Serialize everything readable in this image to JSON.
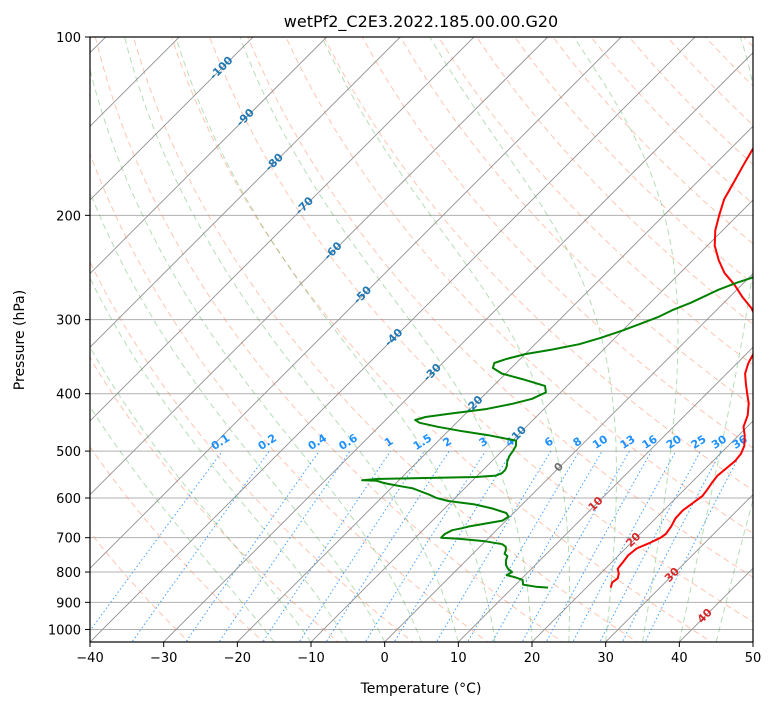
{
  "chart_data": {
    "type": "line",
    "subtype": "skew-t log-p diagram",
    "title": "wetPf2_C2E3.2022.185.00.00.G20",
    "xlabel": "Temperature (°C)",
    "ylabel": "Pressure (hPa)",
    "xlim": [
      -40,
      50
    ],
    "ylim": [
      1050,
      100
    ],
    "y_scale": "log",
    "grid": true,
    "x_ticks": [
      -40,
      -30,
      -20,
      -10,
      0,
      10,
      20,
      30,
      40,
      50
    ],
    "y_ticks": [
      100,
      200,
      300,
      400,
      500,
      600,
      700,
      800,
      900,
      1000
    ],
    "colors": {
      "temperature": "#ff0000",
      "dewpoint": "#008000",
      "dry_adiabats": "#ff7f50",
      "moist_adiabats": "#2ca02c",
      "mixing_ratio": "#1e90ff",
      "isotherms": "#808080"
    },
    "isotherm_labels": [
      {
        "t": -100,
        "p": 113,
        "text": "-100"
      },
      {
        "t": -90,
        "p": 137,
        "text": "-90"
      },
      {
        "t": -80,
        "p": 163,
        "text": "-80"
      },
      {
        "t": -70,
        "p": 193,
        "text": "-70"
      },
      {
        "t": -60,
        "p": 230,
        "text": "-60"
      },
      {
        "t": -50,
        "p": 273,
        "text": "-50"
      },
      {
        "t": -40,
        "p": 322,
        "text": "-40"
      },
      {
        "t": -30,
        "p": 369,
        "text": "-30"
      },
      {
        "t": -20,
        "p": 418,
        "text": "-20"
      },
      {
        "t": -10,
        "p": 470,
        "text": "-10"
      },
      {
        "t": 0,
        "p": 533,
        "text": "0"
      },
      {
        "t": 10,
        "p": 615,
        "text": "10"
      },
      {
        "t": 20,
        "p": 707,
        "text": "20"
      },
      {
        "t": 30,
        "p": 810,
        "text": "30"
      },
      {
        "t": 40,
        "p": 950,
        "text": "40"
      }
    ],
    "mixing_ratio_labels": [
      "0.1",
      "0.2",
      "0.4",
      "0.6",
      "1",
      "1.5",
      "2",
      "3",
      "4",
      "6",
      "8",
      "10",
      "13",
      "16",
      "20",
      "25",
      "30",
      "36"
    ],
    "series": [
      {
        "type": "temperature",
        "points": [
          [
            23.3,
            850
          ],
          [
            22.8,
            833
          ],
          [
            23.0,
            820
          ],
          [
            22.5,
            805
          ],
          [
            21.7,
            790
          ],
          [
            21.5,
            770
          ],
          [
            21.3,
            750
          ],
          [
            21.5,
            730
          ],
          [
            22.5,
            715
          ],
          [
            23.3,
            700
          ],
          [
            23.5,
            690
          ],
          [
            23.2,
            670
          ],
          [
            22.7,
            650
          ],
          [
            22.6,
            630
          ],
          [
            23.0,
            610
          ],
          [
            23.3,
            595
          ],
          [
            23.1,
            580
          ],
          [
            22.8,
            565
          ],
          [
            22.6,
            550
          ],
          [
            22.8,
            535
          ],
          [
            23.0,
            520
          ],
          [
            22.8,
            505
          ],
          [
            22.2,
            490
          ],
          [
            20.8,
            470
          ],
          [
            19.5,
            455
          ],
          [
            18.5,
            435
          ],
          [
            17.0,
            415
          ],
          [
            15.5,
            400
          ],
          [
            14.0,
            385
          ],
          [
            12.5,
            370
          ],
          [
            11.5,
            355
          ],
          [
            10.8,
            340
          ],
          [
            10.0,
            325
          ],
          [
            9.0,
            313
          ],
          [
            6.8,
            300
          ],
          [
            4.5,
            287
          ],
          [
            1.8,
            275
          ],
          [
            -1.0,
            262
          ],
          [
            -4.0,
            250
          ],
          [
            -6.5,
            238
          ],
          [
            -9.0,
            225
          ],
          [
            -11.0,
            212
          ],
          [
            -12.5,
            200
          ],
          [
            -14.0,
            188
          ],
          [
            -15.0,
            176
          ],
          [
            -16.0,
            165
          ],
          [
            -17.0,
            154
          ],
          [
            -18.3,
            143
          ],
          [
            -19.5,
            134
          ],
          [
            -20.5,
            124
          ],
          [
            -21.8,
            117
          ],
          [
            -23.3,
            110
          ],
          [
            -24.3,
            105
          ],
          [
            -22.5,
            100
          ]
        ]
      },
      {
        "type": "dewpoint",
        "points": [
          [
            14.8,
            850
          ],
          [
            13.0,
            847
          ],
          [
            11.0,
            840
          ],
          [
            10.3,
            825
          ],
          [
            9.0,
            817
          ],
          [
            7.5,
            810
          ],
          [
            7.8,
            800
          ],
          [
            6.8,
            790
          ],
          [
            6.0,
            778
          ],
          [
            5.4,
            765
          ],
          [
            5.0,
            752
          ],
          [
            4.3,
            745
          ],
          [
            4.0,
            735
          ],
          [
            3.5,
            725
          ],
          [
            2.7,
            718
          ],
          [
            0.0,
            710
          ],
          [
            -4.0,
            703
          ],
          [
            -6.5,
            700
          ],
          [
            -6.5,
            690
          ],
          [
            -6.0,
            680
          ],
          [
            -5.0,
            675
          ],
          [
            -4.2,
            670
          ],
          [
            -3.0,
            665
          ],
          [
            -0.5,
            655
          ],
          [
            -0.2,
            645
          ],
          [
            -1.0,
            636
          ],
          [
            -3.5,
            625
          ],
          [
            -6.5,
            615
          ],
          [
            -10.5,
            607
          ],
          [
            -12.5,
            600
          ],
          [
            -14.0,
            592
          ],
          [
            -15.5,
            585
          ],
          [
            -17.0,
            578
          ],
          [
            -19.0,
            573
          ],
          [
            -21.0,
            568
          ],
          [
            -22.0,
            565
          ],
          [
            -23.0,
            561
          ],
          [
            -25.0,
            560
          ],
          [
            -23.0,
            557
          ],
          [
            -10.0,
            553
          ],
          [
            -7.5,
            550
          ],
          [
            -7.0,
            545
          ],
          [
            -7.0,
            538
          ],
          [
            -7.3,
            530
          ],
          [
            -7.9,
            520
          ],
          [
            -8.3,
            510
          ],
          [
            -8.5,
            500
          ],
          [
            -8.8,
            490
          ],
          [
            -9.5,
            480
          ],
          [
            -14.0,
            470
          ],
          [
            -18.0,
            463
          ],
          [
            -22.0,
            455
          ],
          [
            -25.0,
            448
          ],
          [
            -26.0,
            443
          ],
          [
            -25.0,
            438
          ],
          [
            -22.0,
            432
          ],
          [
            -18.0,
            425
          ],
          [
            -15.0,
            416
          ],
          [
            -13.0,
            408
          ],
          [
            -12.0,
            398
          ],
          [
            -13.0,
            388
          ],
          [
            -17.0,
            378
          ],
          [
            -20.5,
            370
          ],
          [
            -22.5,
            362
          ],
          [
            -23.0,
            355
          ],
          [
            -22.0,
            350
          ],
          [
            -20.0,
            343
          ],
          [
            -17.0,
            337
          ],
          [
            -14.0,
            330
          ],
          [
            -12.0,
            322
          ],
          [
            -10.0,
            313
          ],
          [
            -8.5,
            305
          ],
          [
            -7.0,
            297
          ],
          [
            -6.0,
            289
          ],
          [
            -4.5,
            281
          ],
          [
            -3.5,
            274
          ],
          [
            -2.5,
            267
          ],
          [
            -1.0,
            260
          ],
          [
            1.0,
            253
          ],
          [
            2.0,
            246
          ],
          [
            1.5,
            240
          ],
          [
            1.0,
            232
          ],
          [
            0.5,
            220
          ],
          [
            0.0,
            210
          ],
          [
            -1.0,
            200
          ],
          [
            -1.7,
            190
          ],
          [
            -2.0,
            180
          ],
          [
            -2.5,
            172
          ],
          [
            -4.0,
            166
          ],
          [
            -5.0,
            160
          ],
          [
            -4.5,
            152
          ],
          [
            -4.5,
            142
          ],
          [
            -5.0,
            135
          ],
          [
            -6.0,
            128
          ],
          [
            -7.0,
            122
          ],
          [
            -7.5,
            116
          ],
          [
            -6.5,
            111
          ],
          [
            -5.0,
            107
          ],
          [
            -3.5,
            103
          ],
          [
            -1.0,
            101
          ],
          [
            1.0,
            100
          ]
        ]
      }
    ]
  }
}
